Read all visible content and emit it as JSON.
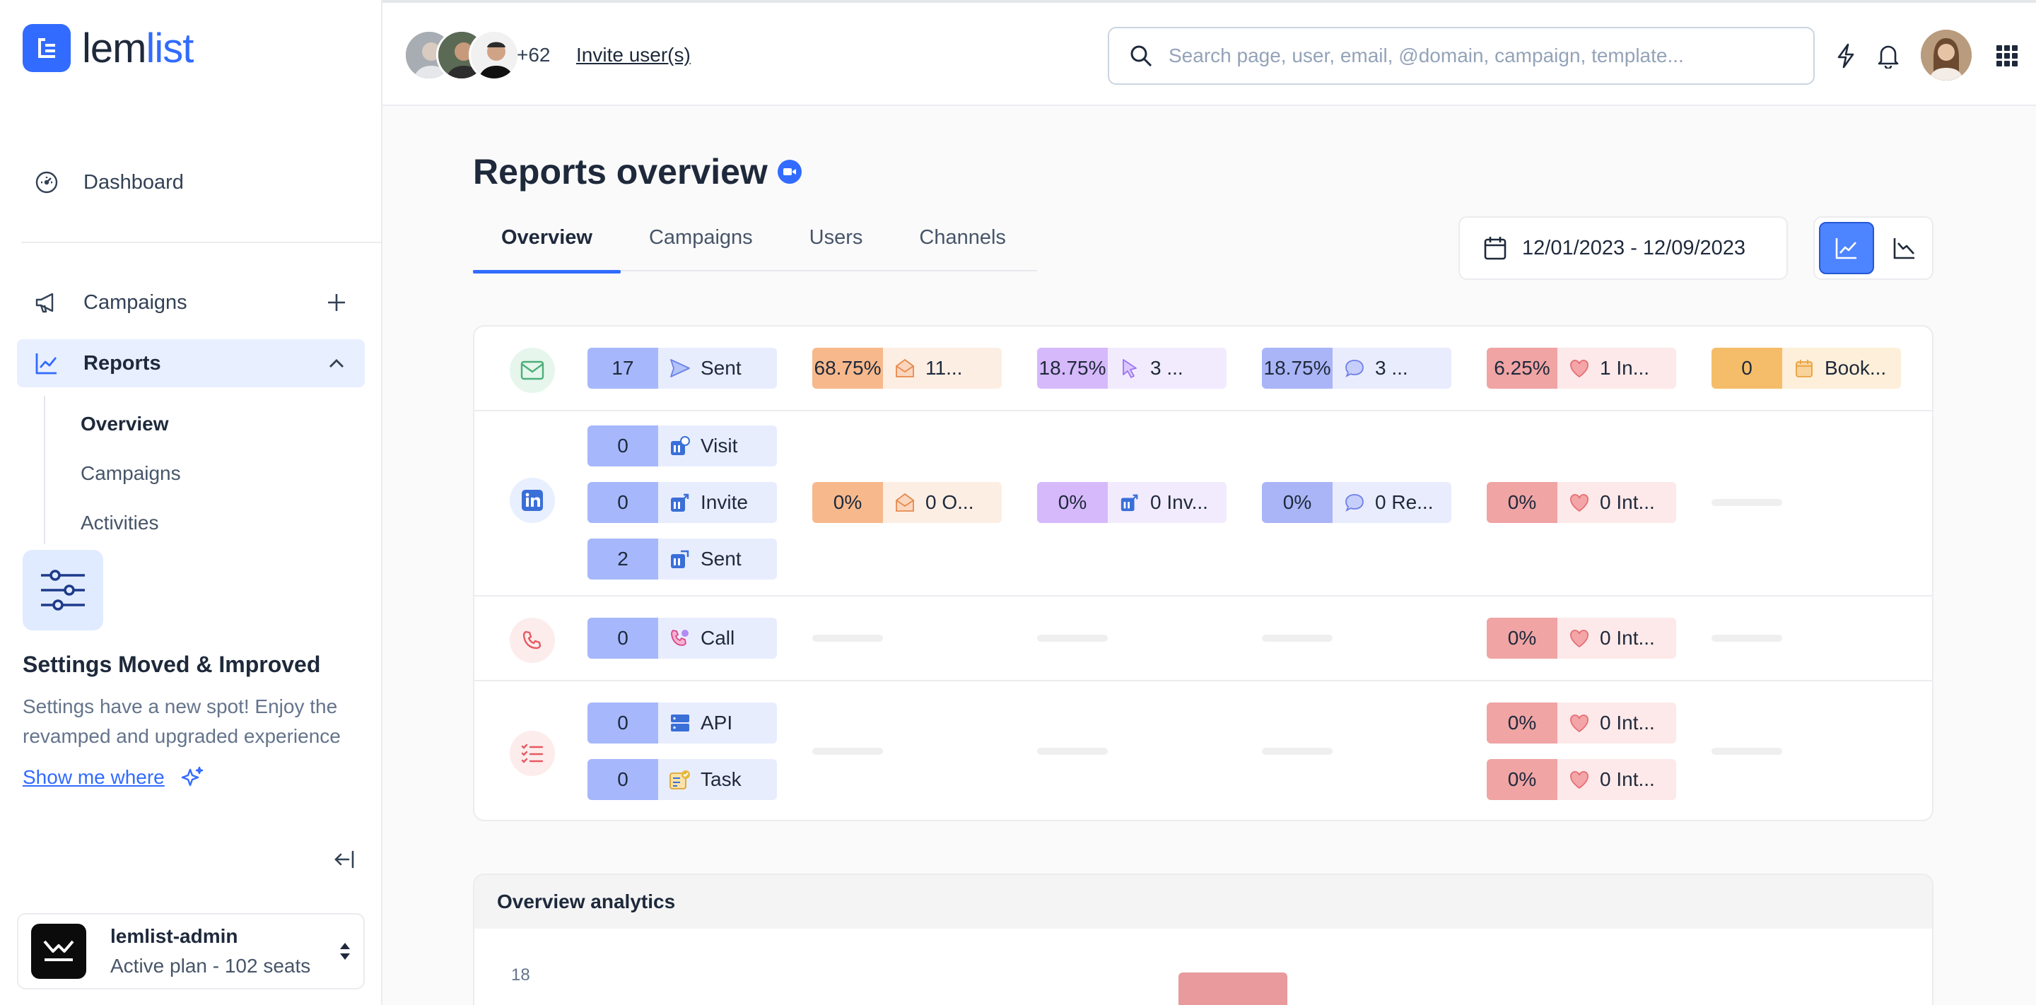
{
  "brand": {
    "name_part1": "lem",
    "name_part2": "list",
    "accent": "#316bff"
  },
  "sidebar": {
    "dashboard": "Dashboard",
    "campaigns": "Campaigns",
    "reports": "Reports",
    "sub_items": [
      "Overview",
      "Campaigns",
      "Activities"
    ],
    "settings_card": {
      "title": "Settings Moved & Improved",
      "desc": "Settings have a new spot! Enjoy the revamped and upgraded experience",
      "link": "Show me where"
    },
    "account": {
      "name": "lemlist-admin",
      "plan": "Active plan - 102 seats"
    }
  },
  "topbar": {
    "extra_users": "+62",
    "invite": "Invite user(s)",
    "search_placeholder": "Search page, user, email, @domain, campaign, template..."
  },
  "main": {
    "title": "Reports overview",
    "tabs": [
      "Overview",
      "Campaigns",
      "Users",
      "Channels"
    ],
    "date_range": "12/01/2023 - 12/09/2023"
  },
  "stats": {
    "email": {
      "sent": {
        "value": "17",
        "label": "Sent"
      },
      "opened": {
        "value": "68.75%",
        "label": "11..."
      },
      "clicked": {
        "value": "18.75%",
        "label": "3 ..."
      },
      "replied": {
        "value": "18.75%",
        "label": "3 ..."
      },
      "interested": {
        "value": "6.25%",
        "label": "1 In..."
      },
      "booked": {
        "value": "0",
        "label": "Book..."
      }
    },
    "linkedin": {
      "visit": {
        "value": "0",
        "label": "Visit"
      },
      "invite": {
        "value": "0",
        "label": "Invite"
      },
      "sent": {
        "value": "2",
        "label": "Sent"
      },
      "opened": {
        "value": "0%",
        "label": "0 O..."
      },
      "invites": {
        "value": "0%",
        "label": "0 Inv..."
      },
      "replied": {
        "value": "0%",
        "label": "0 Re..."
      },
      "interested": {
        "value": "0%",
        "label": "0 Int..."
      }
    },
    "call": {
      "call": {
        "value": "0",
        "label": "Call"
      },
      "interested": {
        "value": "0%",
        "label": "0 Int..."
      }
    },
    "tasks": {
      "api": {
        "value": "0",
        "label": "API"
      },
      "task": {
        "value": "0",
        "label": "Task"
      },
      "api_interested": {
        "value": "0%",
        "label": "0 Int..."
      },
      "task_interested": {
        "value": "0%",
        "label": "0 Int..."
      }
    }
  },
  "analytics": {
    "title": "Overview analytics",
    "y_tick": "18"
  }
}
